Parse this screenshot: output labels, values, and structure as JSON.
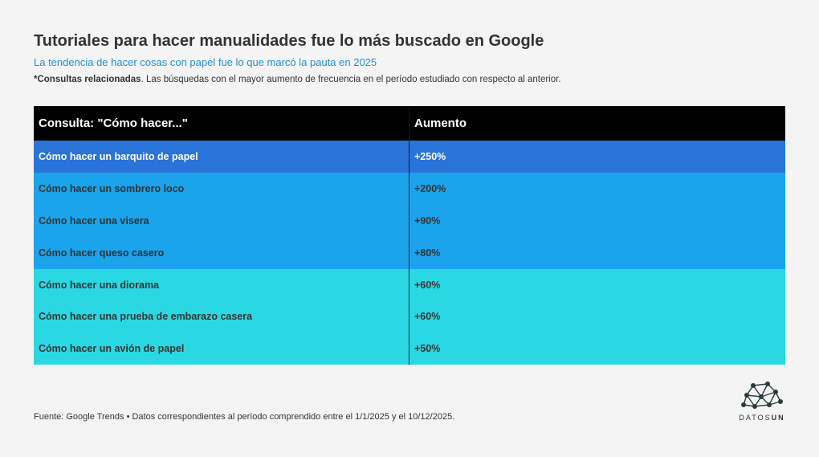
{
  "header": {
    "title": "Tutoriales para hacer manualidades fue lo más buscado en Google",
    "subtitle": "La tendencia de hacer cosas con papel fue lo que marcó la pauta en 2025",
    "note_bold": "*Consultas relacionadas",
    "note_rest": ". Las búsquedas con el mayor aumento de frecuencia en el período estudiado con respecto al anterior."
  },
  "footer": {
    "source": "Fuente: Google Trends • Datos correspondientes al período comprendido entre el 1/1/2025 y el 10/12/2025.",
    "logo_text_a": "DATOS",
    "logo_text_b": "UN"
  },
  "chart_data": {
    "type": "table",
    "columns": [
      "Consulta: \"Cómo hacer...\"",
      "Aumento"
    ],
    "rows": [
      {
        "query": "Cómo hacer un barquito de papel",
        "increase": "+250%",
        "value": 250
      },
      {
        "query": "Cómo hacer un sombrero loco",
        "increase": "+200%",
        "value": 200
      },
      {
        "query": "Cómo hacer una visera",
        "increase": "+90%",
        "value": 90
      },
      {
        "query": "Cómo hacer queso casero",
        "increase": "+80%",
        "value": 80
      },
      {
        "query": "Cómo hacer una diorama",
        "increase": "+60%",
        "value": 60
      },
      {
        "query": "Cómo hacer una prueba de embarazo casera",
        "increase": "+60%",
        "value": 60
      },
      {
        "query": "Cómo hacer un avión de papel",
        "increase": "+50%",
        "value": 50
      }
    ],
    "colors": {
      "header": "#000000",
      "tier_high": "#2a73d8",
      "tier_mid": "#1ba3eb",
      "tier_low": "#2ad8e3"
    }
  }
}
